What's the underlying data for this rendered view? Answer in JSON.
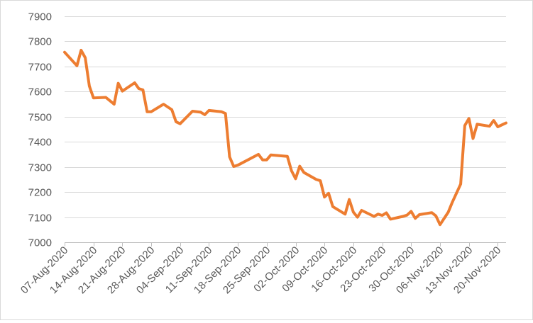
{
  "chart_data": {
    "type": "line",
    "title": "",
    "xlabel": "",
    "ylabel": "",
    "ylim": [
      7000,
      7900
    ],
    "yticks": [
      7000,
      7100,
      7200,
      7300,
      7400,
      7500,
      7600,
      7700,
      7800,
      7900
    ],
    "xlim": [
      "2020-08-07",
      "2020-11-22"
    ],
    "xticks": [
      {
        "date": "2020-08-07",
        "label": "07-Aug-2020"
      },
      {
        "date": "2020-08-14",
        "label": "14-Aug-2020"
      },
      {
        "date": "2020-08-21",
        "label": "21-Aug-2020"
      },
      {
        "date": "2020-08-28",
        "label": "28-Aug-2020"
      },
      {
        "date": "2020-09-04",
        "label": "04-Sep-2020"
      },
      {
        "date": "2020-09-11",
        "label": "11-Sep-2020"
      },
      {
        "date": "2020-09-18",
        "label": "18-Sep-2020"
      },
      {
        "date": "2020-09-25",
        "label": "25-Sep-2020"
      },
      {
        "date": "2020-10-02",
        "label": "02-Oct-2020"
      },
      {
        "date": "2020-10-09",
        "label": "09-Oct-2020"
      },
      {
        "date": "2020-10-16",
        "label": "16-Oct-2020"
      },
      {
        "date": "2020-10-23",
        "label": "23-Oct-2020"
      },
      {
        "date": "2020-10-30",
        "label": "30-Oct-2020"
      },
      {
        "date": "2020-11-06",
        "label": "06-Nov-2020"
      },
      {
        "date": "2020-11-13",
        "label": "13-Nov-2020"
      },
      {
        "date": "2020-11-20",
        "label": "20-Nov-2020"
      }
    ],
    "grid": true,
    "legend": "none",
    "series": [
      {
        "color": "#ED7D31",
        "points": [
          [
            "2020-08-07",
            7757
          ],
          [
            "2020-08-10",
            7703
          ],
          [
            "2020-08-11",
            7765
          ],
          [
            "2020-08-12",
            7735
          ],
          [
            "2020-08-13",
            7622
          ],
          [
            "2020-08-14",
            7575
          ],
          [
            "2020-08-17",
            7577
          ],
          [
            "2020-08-19",
            7550
          ],
          [
            "2020-08-20",
            7633
          ],
          [
            "2020-08-21",
            7602
          ],
          [
            "2020-08-24",
            7635
          ],
          [
            "2020-08-25",
            7612
          ],
          [
            "2020-08-26",
            7607
          ],
          [
            "2020-08-27",
            7520
          ],
          [
            "2020-08-28",
            7520
          ],
          [
            "2020-08-31",
            7550
          ],
          [
            "2020-09-02",
            7528
          ],
          [
            "2020-09-03",
            7480
          ],
          [
            "2020-09-04",
            7472
          ],
          [
            "2020-09-07",
            7522
          ],
          [
            "2020-09-09",
            7518
          ],
          [
            "2020-09-10",
            7508
          ],
          [
            "2020-09-11",
            7525
          ],
          [
            "2020-09-14",
            7520
          ],
          [
            "2020-09-15",
            7513
          ],
          [
            "2020-09-16",
            7340
          ],
          [
            "2020-09-17",
            7302
          ],
          [
            "2020-09-18",
            7307
          ],
          [
            "2020-09-23",
            7350
          ],
          [
            "2020-09-24",
            7328
          ],
          [
            "2020-09-25",
            7328
          ],
          [
            "2020-09-26",
            7348
          ],
          [
            "2020-09-30",
            7342
          ],
          [
            "2020-10-01",
            7285
          ],
          [
            "2020-10-02",
            7253
          ],
          [
            "2020-10-03",
            7303
          ],
          [
            "2020-10-04",
            7278
          ],
          [
            "2020-10-07",
            7250
          ],
          [
            "2020-10-08",
            7245
          ],
          [
            "2020-10-09",
            7180
          ],
          [
            "2020-10-10",
            7195
          ],
          [
            "2020-10-11",
            7142
          ],
          [
            "2020-10-14",
            7112
          ],
          [
            "2020-10-15",
            7170
          ],
          [
            "2020-10-16",
            7120
          ],
          [
            "2020-10-17",
            7100
          ],
          [
            "2020-10-18",
            7127
          ],
          [
            "2020-10-21",
            7103
          ],
          [
            "2020-10-22",
            7112
          ],
          [
            "2020-10-23",
            7107
          ],
          [
            "2020-10-24",
            7117
          ],
          [
            "2020-10-25",
            7092
          ],
          [
            "2020-10-28",
            7103
          ],
          [
            "2020-10-29",
            7108
          ],
          [
            "2020-10-30",
            7123
          ],
          [
            "2020-10-31",
            7095
          ],
          [
            "2020-11-01",
            7110
          ],
          [
            "2020-11-04",
            7118
          ],
          [
            "2020-11-05",
            7105
          ],
          [
            "2020-11-06",
            7070
          ],
          [
            "2020-11-08",
            7120
          ],
          [
            "2020-11-09",
            7160
          ],
          [
            "2020-11-11",
            7232
          ],
          [
            "2020-11-12",
            7465
          ],
          [
            "2020-11-13",
            7493
          ],
          [
            "2020-11-14",
            7413
          ],
          [
            "2020-11-15",
            7470
          ],
          [
            "2020-11-18",
            7462
          ],
          [
            "2020-11-19",
            7485
          ],
          [
            "2020-11-20",
            7460
          ],
          [
            "2020-11-22",
            7475
          ]
        ]
      }
    ]
  }
}
